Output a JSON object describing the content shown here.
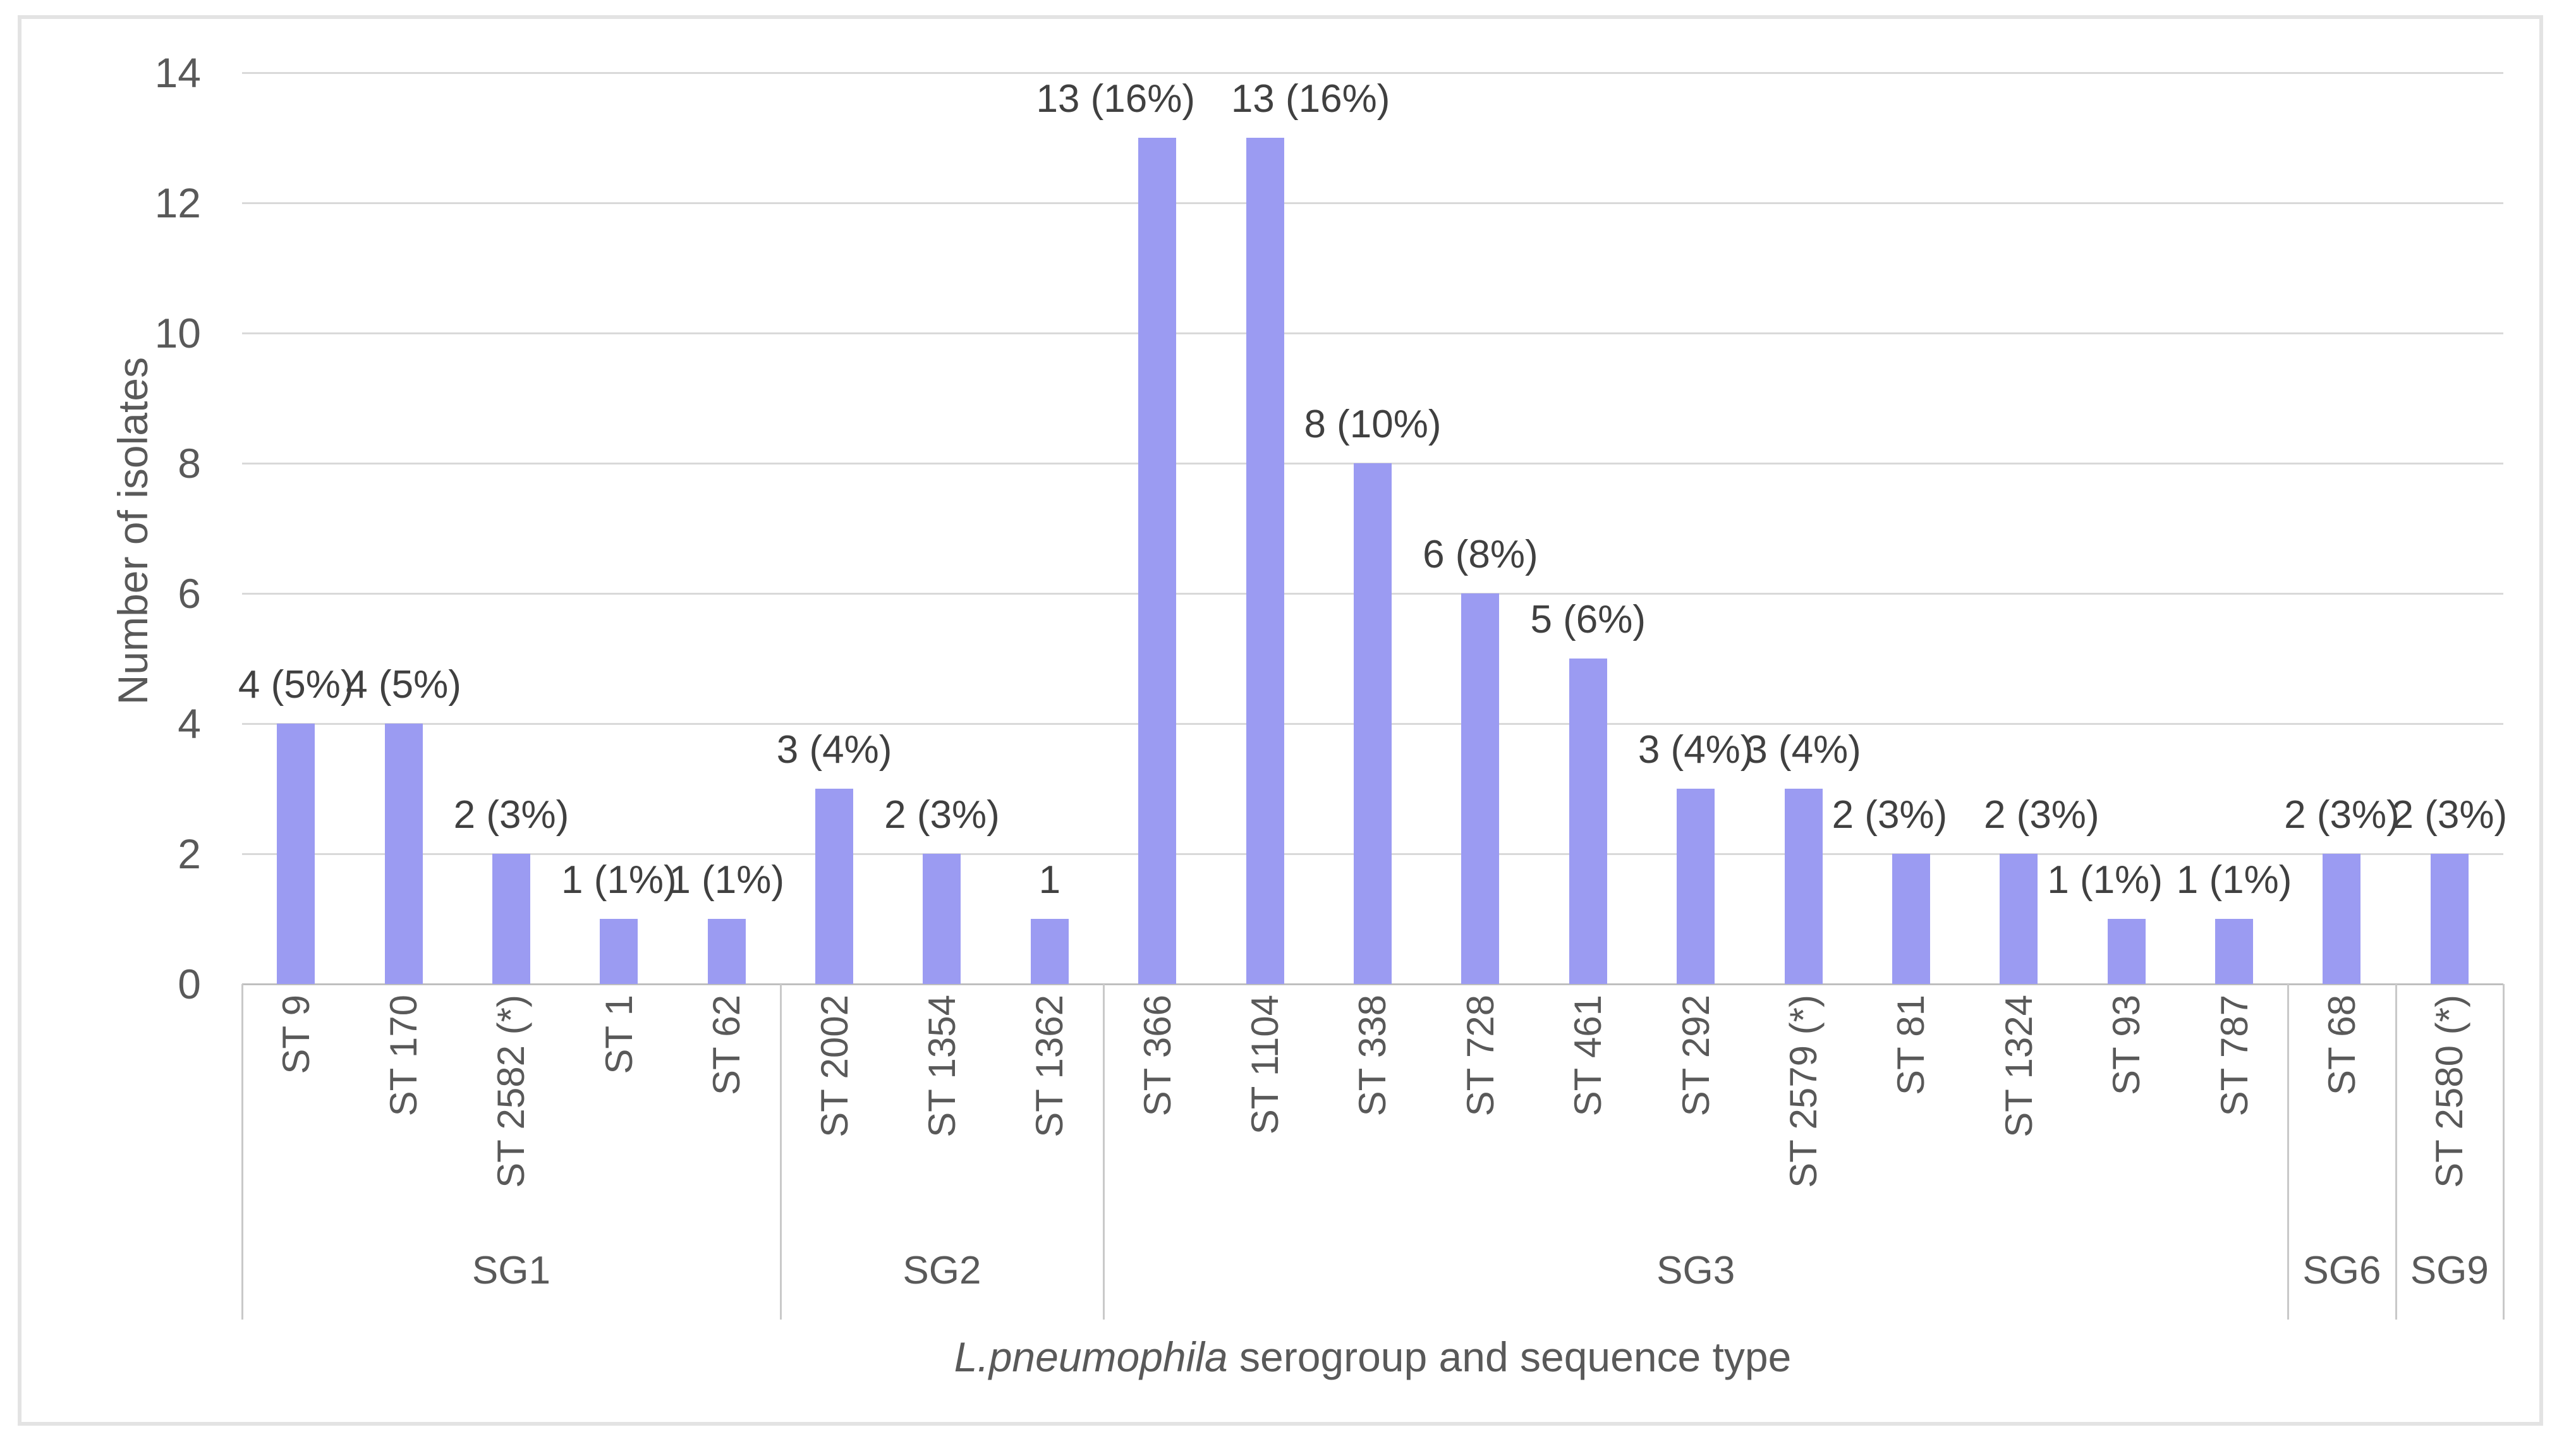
{
  "figure": {
    "background_color": "#ffffff",
    "border_color": "#e3e3e3"
  },
  "chart_data": {
    "type": "bar",
    "title": "",
    "ylabel": "Number of isolates",
    "xlabel_italic": "L.pneumophila",
    "xlabel_rest": " serogroup and sequence type",
    "xlabel_full": "L.pneumophila serogroup and sequence type",
    "ylim": [
      0,
      14
    ],
    "yticks": [
      0,
      2,
      4,
      6,
      8,
      10,
      12,
      14
    ],
    "grid": true,
    "legend_position": "none",
    "bar_color": "#9b9bf2",
    "gridline_color": "#d9d9d9",
    "axis_line_color": "#bfbfbf",
    "category_line_color": "#c9c9c9",
    "tick_text_color": "#595959",
    "value_label_color": "#404040",
    "groups": [
      {
        "label": "SG1",
        "bars": [
          {
            "category": "ST 9",
            "value": 4,
            "label": "4 (5%)"
          },
          {
            "category": "ST 170",
            "value": 4,
            "label": "4 (5%)"
          },
          {
            "category": "ST 2582 (*)",
            "value": 2,
            "label": "2 (3%)"
          },
          {
            "category": "ST 1",
            "value": 1,
            "label": "1 (1%)"
          },
          {
            "category": "ST 62",
            "value": 1,
            "label": "1 (1%)"
          }
        ]
      },
      {
        "label": "SG2",
        "bars": [
          {
            "category": "ST 2002",
            "value": 3,
            "label": "3 (4%)"
          },
          {
            "category": "ST 1354",
            "value": 2,
            "label": "2 (3%)"
          },
          {
            "category": "ST 1362",
            "value": 1,
            "label": "1"
          }
        ]
      },
      {
        "label": "SG3",
        "bars": [
          {
            "category": "ST 366",
            "value": 13,
            "label": "13 (16%)",
            "label_dx": -66
          },
          {
            "category": "ST 1104",
            "value": 13,
            "label": "13 (16%)",
            "label_dx": 72
          },
          {
            "category": "ST 338",
            "value": 8,
            "label": "8 (10%)"
          },
          {
            "category": "ST 728",
            "value": 6,
            "label": "6 (8%)"
          },
          {
            "category": "ST 461",
            "value": 5,
            "label": "5 (6%)"
          },
          {
            "category": "ST 292",
            "value": 3,
            "label": "3 (4%)"
          },
          {
            "category": "ST 2579 (*)",
            "value": 3,
            "label": "3 (4%)"
          },
          {
            "category": "ST 81",
            "value": 2,
            "label": "2 (3%)",
            "label_dx": -34
          },
          {
            "category": "ST 1324",
            "value": 2,
            "label": "2 (3%)",
            "label_dx": 36
          },
          {
            "category": "ST 93",
            "value": 1,
            "label": "1 (1%)",
            "label_dx": -34
          },
          {
            "category": "ST 787",
            "value": 1,
            "label": "1 (1%)"
          }
        ]
      },
      {
        "label": "SG6",
        "bars": [
          {
            "category": "ST 68",
            "value": 2,
            "label": "2 (3%)"
          }
        ]
      },
      {
        "label": "SG9",
        "bars": [
          {
            "category": "ST 2580 (*)",
            "value": 2,
            "label": "2 (3%)"
          }
        ]
      }
    ]
  }
}
